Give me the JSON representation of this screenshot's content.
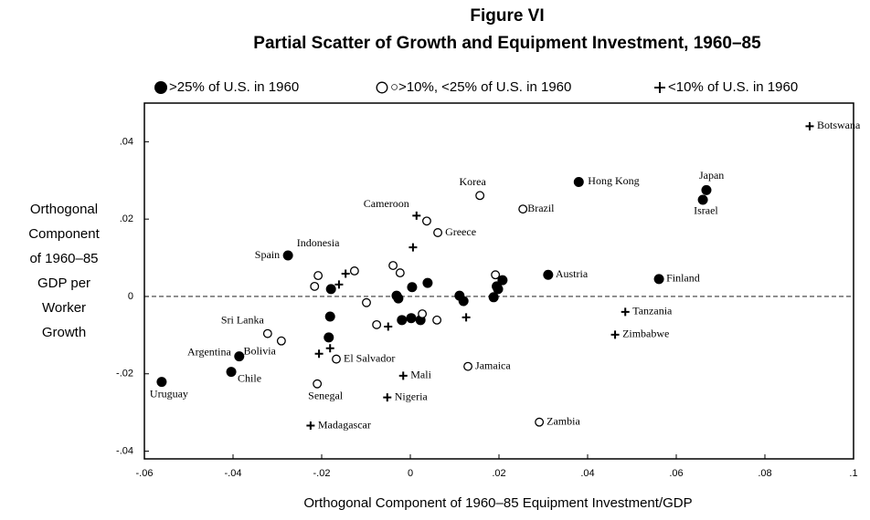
{
  "chart_data": {
    "type": "scatter",
    "title": "Figure VI",
    "subtitle": "Partial Scatter of Growth and Equipment Investment, 1960–85",
    "xlabel": "Orthogonal Component of 1960–85 Equipment Investment/GDP",
    "ylabel": [
      "Orthogonal",
      "Component",
      "of 1960–85",
      "GDP per",
      "Worker",
      "Growth"
    ],
    "xlim": [
      -0.06,
      0.1
    ],
    "ylim": [
      -0.042,
      0.05
    ],
    "xticks": [
      {
        "value": -0.06,
        "label": "-.06"
      },
      {
        "value": -0.04,
        "label": "-.04"
      },
      {
        "value": -0.02,
        "label": "-.02"
      },
      0,
      {
        "value": 0.02,
        "label": ".02"
      },
      {
        "value": 0.04,
        "label": ".04"
      },
      {
        "value": 0.06,
        "label": ".06"
      },
      {
        "value": 0.08,
        "label": ".08"
      },
      {
        "value": 0.1,
        "label": ".1"
      }
    ],
    "yticks": [
      {
        "value": -0.04,
        "label": "-.04"
      },
      {
        "value": -0.02,
        "label": "-.02"
      },
      0,
      {
        "value": 0.02,
        "label": ".02"
      },
      {
        "value": 0.04,
        "label": ".04"
      }
    ],
    "series": [
      {
        "name": ">25% of U.S. in 1960",
        "marker": "filled",
        "color": "#000000",
        "x": [
          0.038,
          0.0668,
          0.066,
          -0.0276,
          0.0311,
          0.0561,
          -0.0386,
          -0.0404,
          -0.0561,
          0.0004,
          0.0039,
          -0.0031,
          -0.0027,
          -0.0179,
          -0.0181,
          -0.0184,
          -0.0019,
          0.0002,
          0.0023,
          0.0111,
          0.012,
          0.0188,
          0.0198,
          0.0208,
          0.0195
        ],
        "y": [
          0.0296,
          0.0275,
          0.025,
          0.0106,
          0.0056,
          0.0045,
          -0.0155,
          -0.0195,
          -0.0221,
          0.0024,
          0.0035,
          0.0002,
          -0.0005,
          0.0019,
          -0.0052,
          -0.0106,
          -0.0061,
          -0.0056,
          -0.0061,
          0.0002,
          -0.0012,
          -0.0002,
          0.0019,
          0.0042,
          0.0026
        ],
        "labels": [
          "Hong Kong",
          "Japan",
          "Israel",
          "Spain",
          "Austria",
          "Finland",
          "Argentina",
          "Chile",
          "Uruguay",
          null,
          null,
          null,
          null,
          null,
          null,
          null,
          null,
          null,
          null,
          null,
          null,
          null,
          null,
          null,
          null
        ]
      },
      {
        "name": "○>10%, <25% of U.S. in 1960",
        "marker": "open",
        "color": "#000000",
        "x": [
          0.0157,
          0.0254,
          0.0062,
          -0.0208,
          -0.0322,
          -0.0291,
          -0.0167,
          0.013,
          -0.021,
          0.0291,
          0.0037,
          -0.0126,
          -0.0216,
          -0.0039,
          -0.0023,
          -0.0099,
          -0.0076,
          0.0027,
          0.006,
          0.0192
        ],
        "y": [
          0.0261,
          0.0226,
          0.0165,
          0.0054,
          -0.0096,
          -0.0115,
          -0.0162,
          -0.0181,
          -0.0226,
          -0.0325,
          0.0195,
          0.0066,
          0.0026,
          0.008,
          0.0061,
          -0.0016,
          -0.0073,
          -0.0045,
          -0.0061,
          0.0056
        ],
        "labels": [
          "Korea",
          "Brazil",
          "Greece",
          "Indonesia",
          "Sri Lanka",
          "Bolivia",
          "El Salvador",
          "Jamaica",
          "Senegal",
          "Zambia",
          null,
          null,
          null,
          null,
          null,
          null,
          null,
          null,
          null,
          null
        ]
      },
      {
        "name": "<10% of U.S. in 1960",
        "marker": "plus",
        "color": "#000000",
        "x": [
          0.0901,
          0.0014,
          0.0485,
          0.0462,
          -0.0016,
          -0.0052,
          -0.0225,
          0.0006,
          -0.0146,
          -0.0161,
          -0.0206,
          -0.0181,
          -0.005,
          0.0126
        ],
        "y": [
          0.044,
          0.0209,
          -0.004,
          -0.0099,
          -0.0205,
          -0.0261,
          -0.0334,
          0.0127,
          0.0059,
          0.0031,
          -0.0148,
          -0.0134,
          -0.0078,
          -0.0054
        ],
        "labels": [
          "Botswana",
          "Cameroon",
          "Tanzania",
          "Zimbabwe",
          "Mali",
          "Nigeria",
          "Madagascar",
          null,
          null,
          null,
          null,
          null,
          null,
          null
        ]
      }
    ]
  }
}
